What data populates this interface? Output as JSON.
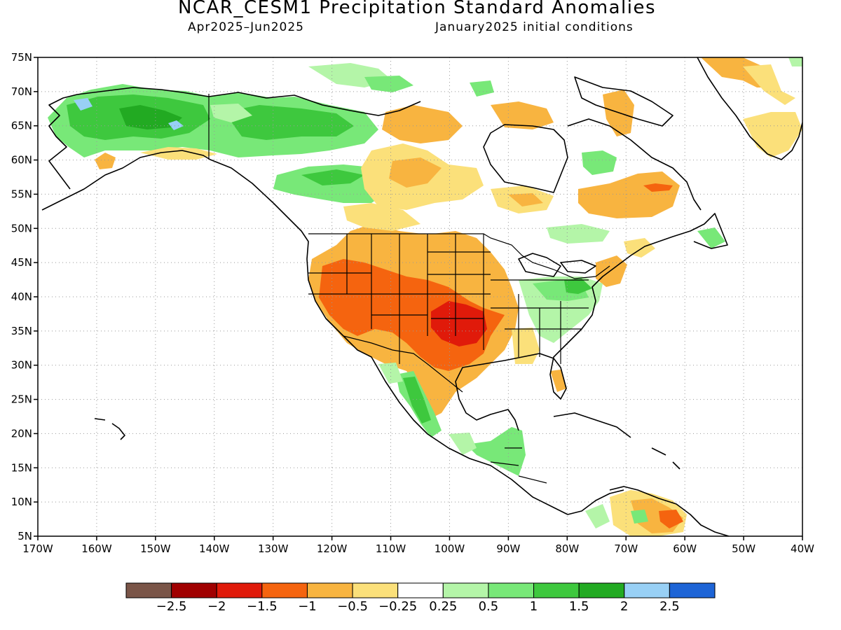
{
  "header": {
    "title": "NCAR_CESM1 Precipitation Standard Anomalies",
    "period": "Apr2025–Jun2025",
    "init": "January2025 initial conditions"
  },
  "map": {
    "lat_labels": [
      "75N",
      "70N",
      "65N",
      "60N",
      "55N",
      "50N",
      "45N",
      "40N",
      "35N",
      "30N",
      "25N",
      "20N",
      "15N",
      "10N",
      "5N"
    ],
    "lon_labels": [
      "170W",
      "160W",
      "150W",
      "140W",
      "130W",
      "120W",
      "110W",
      "100W",
      "90W",
      "80W",
      "70W",
      "60W",
      "50W",
      "40W"
    ],
    "colors": {
      "strong_dry": "#7a5548",
      "very_dry": "#a00000",
      "dry_red": "#e01a0a",
      "dry_orange": "#f5640f",
      "dry": "#f8b440",
      "slight_dry": "#fbe07a",
      "neutral": "#ffffff",
      "slight_wet": "#b4f5a8",
      "wet": "#78e878",
      "wetter": "#3ec83e",
      "very_wet": "#22aa22",
      "strong_wet": "#98d0f5",
      "extreme_wet": "#1d64d6"
    }
  },
  "colorbar": {
    "colors": [
      "#7a5548",
      "#a00000",
      "#e01a0a",
      "#f5640f",
      "#f8b440",
      "#fbe07a",
      "#ffffff",
      "#b4f5a8",
      "#78e878",
      "#3ec83e",
      "#22aa22",
      "#98d0f5",
      "#1d64d6"
    ],
    "labels": [
      "−2.5",
      "−2",
      "−1.5",
      "−1",
      "−0.5",
      "−0.25",
      "0.25",
      "0.5",
      "1",
      "1.5",
      "2",
      "2.5"
    ]
  }
}
